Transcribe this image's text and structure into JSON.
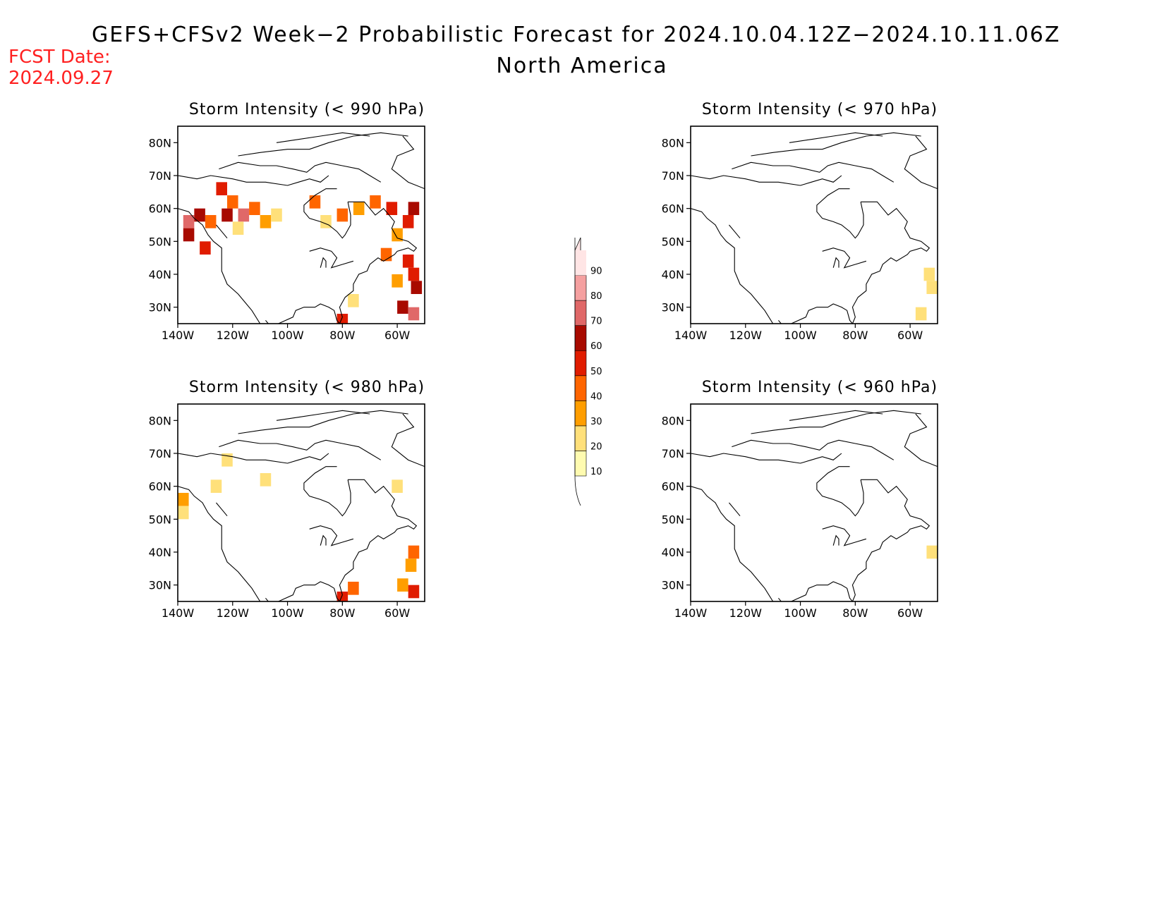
{
  "title": "GEFS+CFSv2 Week−2 Probabilistic Forecast for 2024.10.04.12Z−2024.10.11.06Z",
  "region": "North America",
  "fcst_date_label": "FCST Date:",
  "fcst_date_value": "2024.09.27",
  "lat_ticks": [
    "80N",
    "70N",
    "60N",
    "50N",
    "40N",
    "30N"
  ],
  "lon_ticks": [
    "140W",
    "120W",
    "100W",
    "80W",
    "60W"
  ],
  "lat_values": [
    80,
    70,
    60,
    50,
    40,
    30
  ],
  "lon_values": [
    -140,
    -120,
    -100,
    -80,
    -60
  ],
  "map_extent": {
    "lon": [
      -140,
      -50
    ],
    "lat": [
      25,
      85
    ]
  },
  "colorbar": {
    "levels": [
      "10",
      "20",
      "30",
      "40",
      "50",
      "60",
      "70",
      "80",
      "90"
    ],
    "colors": [
      "#fffbb0",
      "#ffe07a",
      "#ff9e00",
      "#ff6500",
      "#e01c00",
      "#a80a00",
      "#e06868",
      "#f5a0a0",
      "#ffe5e5"
    ]
  },
  "panels": [
    {
      "title": "Storm Intensity (< 990 hPa)",
      "cells": [
        {
          "lon": -136,
          "lat": 56,
          "level": 6
        },
        {
          "lon": -132,
          "lat": 58,
          "level": 5
        },
        {
          "lon": -136,
          "lat": 52,
          "level": 5
        },
        {
          "lon": -130,
          "lat": 48,
          "level": 4
        },
        {
          "lon": -128,
          "lat": 56,
          "level": 3
        },
        {
          "lon": -124,
          "lat": 66,
          "level": 4
        },
        {
          "lon": -120,
          "lat": 62,
          "level": 3
        },
        {
          "lon": -122,
          "lat": 58,
          "level": 5
        },
        {
          "lon": -116,
          "lat": 58,
          "level": 6
        },
        {
          "lon": -112,
          "lat": 60,
          "level": 3
        },
        {
          "lon": -108,
          "lat": 56,
          "level": 2
        },
        {
          "lon": -104,
          "lat": 58,
          "level": 1
        },
        {
          "lon": -118,
          "lat": 54,
          "level": 1
        },
        {
          "lon": -90,
          "lat": 62,
          "level": 3
        },
        {
          "lon": -86,
          "lat": 56,
          "level": 1
        },
        {
          "lon": -80,
          "lat": 58,
          "level": 3
        },
        {
          "lon": -74,
          "lat": 60,
          "level": 2
        },
        {
          "lon": -68,
          "lat": 62,
          "level": 3
        },
        {
          "lon": -62,
          "lat": 60,
          "level": 4
        },
        {
          "lon": -56,
          "lat": 56,
          "level": 4
        },
        {
          "lon": -54,
          "lat": 60,
          "level": 5
        },
        {
          "lon": -60,
          "lat": 52,
          "level": 2
        },
        {
          "lon": -64,
          "lat": 46,
          "level": 3
        },
        {
          "lon": -56,
          "lat": 44,
          "level": 4
        },
        {
          "lon": -54,
          "lat": 40,
          "level": 4
        },
        {
          "lon": -53,
          "lat": 36,
          "level": 5
        },
        {
          "lon": -60,
          "lat": 38,
          "level": 2
        },
        {
          "lon": -58,
          "lat": 30,
          "level": 5
        },
        {
          "lon": -54,
          "lat": 28,
          "level": 6
        },
        {
          "lon": -76,
          "lat": 32,
          "level": 1
        },
        {
          "lon": -80,
          "lat": 26,
          "level": 4
        }
      ]
    },
    {
      "title": "Storm Intensity (< 970 hPa)",
      "cells": [
        {
          "lon": -53,
          "lat": 40,
          "level": 1
        },
        {
          "lon": -52,
          "lat": 36,
          "level": 1
        },
        {
          "lon": -56,
          "lat": 28,
          "level": 1
        }
      ]
    },
    {
      "title": "Storm Intensity (< 980 hPa)",
      "cells": [
        {
          "lon": -138,
          "lat": 56,
          "level": 2
        },
        {
          "lon": -138,
          "lat": 52,
          "level": 1
        },
        {
          "lon": -122,
          "lat": 68,
          "level": 1
        },
        {
          "lon": -126,
          "lat": 60,
          "level": 1
        },
        {
          "lon": -108,
          "lat": 62,
          "level": 1
        },
        {
          "lon": -60,
          "lat": 60,
          "level": 1
        },
        {
          "lon": -54,
          "lat": 40,
          "level": 3
        },
        {
          "lon": -55,
          "lat": 36,
          "level": 2
        },
        {
          "lon": -58,
          "lat": 30,
          "level": 2
        },
        {
          "lon": -54,
          "lat": 28,
          "level": 4
        },
        {
          "lon": -80,
          "lat": 26,
          "level": 4
        },
        {
          "lon": -76,
          "lat": 29,
          "level": 3
        }
      ]
    },
    {
      "title": "Storm Intensity (< 960 hPa)",
      "cells": [
        {
          "lon": -52,
          "lat": 40,
          "level": 1
        }
      ]
    }
  ]
}
